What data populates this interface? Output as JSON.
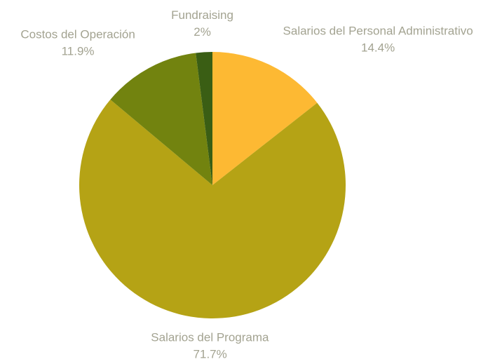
{
  "chart_data": {
    "type": "pie",
    "categories": [
      "Salarios del Personal Administrativo",
      "Salarios del Programa",
      "Costos del Operación",
      "Fundraising"
    ],
    "values": [
      14.4,
      71.7,
      11.9,
      2
    ],
    "value_labels": [
      "14.4%",
      "71.7%",
      "11.9%",
      "2%"
    ],
    "colors": [
      "#fdb933",
      "#b5a315",
      "#72830f",
      "#3a5e14"
    ]
  }
}
